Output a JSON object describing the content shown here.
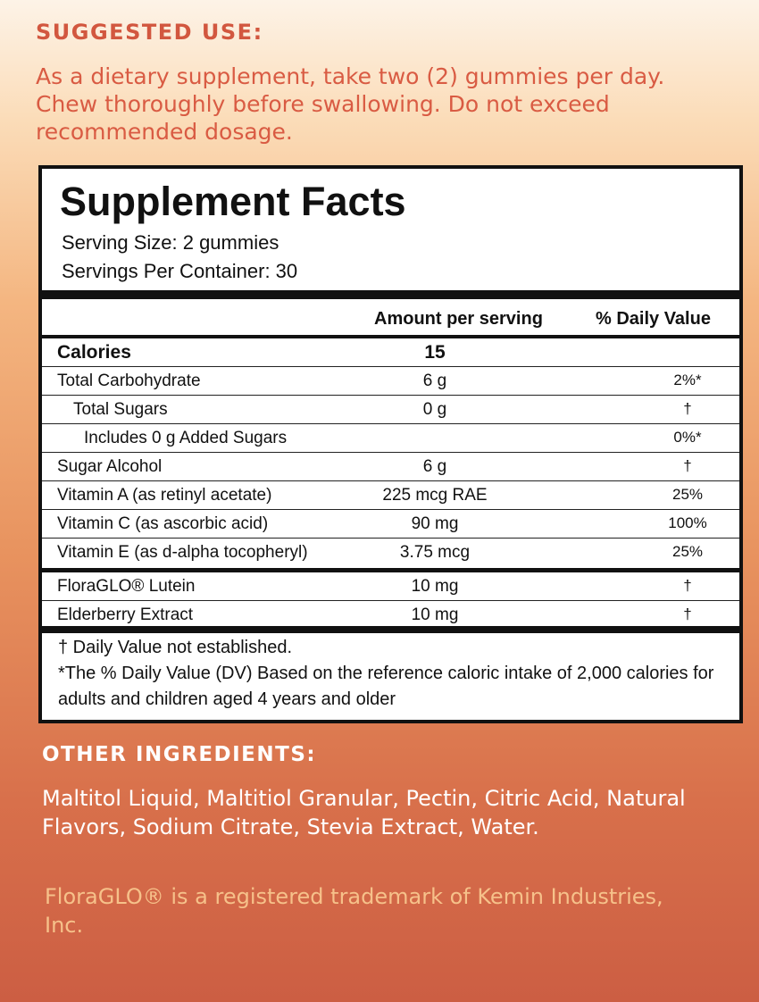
{
  "suggested_use": {
    "title": "SUGGESTED USE:",
    "text": "As a dietary supplement, take two (2) gummies per day. Chew thoroughly before swallowing. Do not exceed recommended dosage."
  },
  "facts": {
    "title": "Supplement Facts",
    "serving_size": "Serving Size: 2 gummies",
    "servings_per_container": "Servings Per Container: 30",
    "col_amount": "Amount per serving",
    "col_dv": "% Daily Value",
    "rows": [
      {
        "name": "Calories",
        "amount": "15",
        "dv": ""
      },
      {
        "name": "Total Carbohydrate",
        "amount": "6 g",
        "dv": "2%*"
      },
      {
        "name": "Total Sugars",
        "amount": "0 g",
        "dv": "†"
      },
      {
        "name": "Includes 0 g Added Sugars",
        "amount": "",
        "dv": "0%*"
      },
      {
        "name": "Sugar Alcohol",
        "amount": "6 g",
        "dv": "†"
      },
      {
        "name": "Vitamin A (as retinyl acetate)",
        "amount": "225 mcg RAE",
        "dv": "25%"
      },
      {
        "name": "Vitamin C (as ascorbic acid)",
        "amount": "90 mg",
        "dv": "100%"
      },
      {
        "name": "Vitamin E (as d-alpha tocopheryl)",
        "amount": "3.75 mcg",
        "dv": "25%"
      },
      {
        "name": "FloraGLO® Lutein",
        "amount": "10 mg",
        "dv": "†"
      },
      {
        "name": "Elderberry Extract",
        "amount": "10 mg",
        "dv": "†"
      }
    ],
    "footnote_dagger": "† Daily Value not established.",
    "footnote_star": "*The % Daily Value (DV) Based on the reference caloric intake of 2,000 calories for adults and children aged 4 years and older"
  },
  "other_ingredients": {
    "title": "OTHER INGREDIENTS:",
    "text": "Maltitol Liquid, Maltitiol Granular, Pectin, Citric Acid, Natural Flavors, Sodium Citrate, Stevia Extract, Water."
  },
  "trademark": "FloraGLO® is a registered trademark of Kemin Industries, Inc.",
  "colors": {
    "heading_red": "#d2573f",
    "trademark_peach": "#f6c18a"
  }
}
